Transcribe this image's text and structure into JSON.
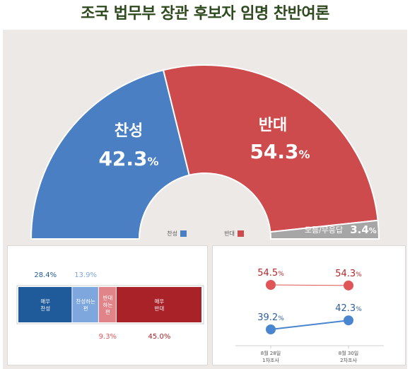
{
  "title": "조국 법무부 장관 후보자 임명 찬반여론",
  "colors": {
    "approve": "#4a7fc4",
    "oppose": "#cd4a4d",
    "unknown": "#a6a6a6",
    "strong_approve": "#1f5a9a",
    "weak_approve": "#7ea7dd",
    "weak_oppose": "#e0848a",
    "strong_oppose": "#a82228",
    "series_oppose": "#e05558",
    "series_approve": "#4a86cf"
  },
  "chart_data": [
    {
      "type": "pie",
      "variant": "semi-donut",
      "slices": [
        {
          "label": "찬성",
          "value": 42.3
        },
        {
          "label": "반대",
          "value": 54.3
        },
        {
          "label": "모름/무응답",
          "value": 3.4
        }
      ],
      "display": {
        "approve_label": "찬성",
        "approve_value": "42.3",
        "approve_unit": "%",
        "oppose_label": "반대",
        "oppose_value": "54.3",
        "oppose_unit": "%",
        "unknown_label": "모름/무응답",
        "unknown_value": "3.4",
        "unknown_unit": "%"
      },
      "legend": {
        "position": "bottom",
        "items": [
          "찬성",
          "반대"
        ]
      }
    },
    {
      "type": "bar",
      "variant": "stacked-100",
      "segments": [
        {
          "label": "매우\n찬성",
          "value": 28.4,
          "value_text": "28.4%"
        },
        {
          "label": "찬성하는\n편",
          "value": 13.9,
          "value_text": "13.9%"
        },
        {
          "label": "반대\n하는\n편",
          "value": 9.3,
          "value_text": "9.3%"
        },
        {
          "label": "매우\n반대",
          "value": 45.0,
          "value_text": "45.0%"
        }
      ]
    },
    {
      "type": "line",
      "categories": [
        "8월 28일\n1차조사",
        "8월 30일\n2차조사"
      ],
      "series": [
        {
          "name": "반대",
          "values": [
            54.5,
            54.3
          ],
          "value_texts": [
            "54.5%",
            "54.3%"
          ]
        },
        {
          "name": "찬성",
          "values": [
            39.2,
            42.3
          ],
          "value_texts": [
            "39.2%",
            "42.3%"
          ]
        }
      ],
      "grid": false
    }
  ]
}
